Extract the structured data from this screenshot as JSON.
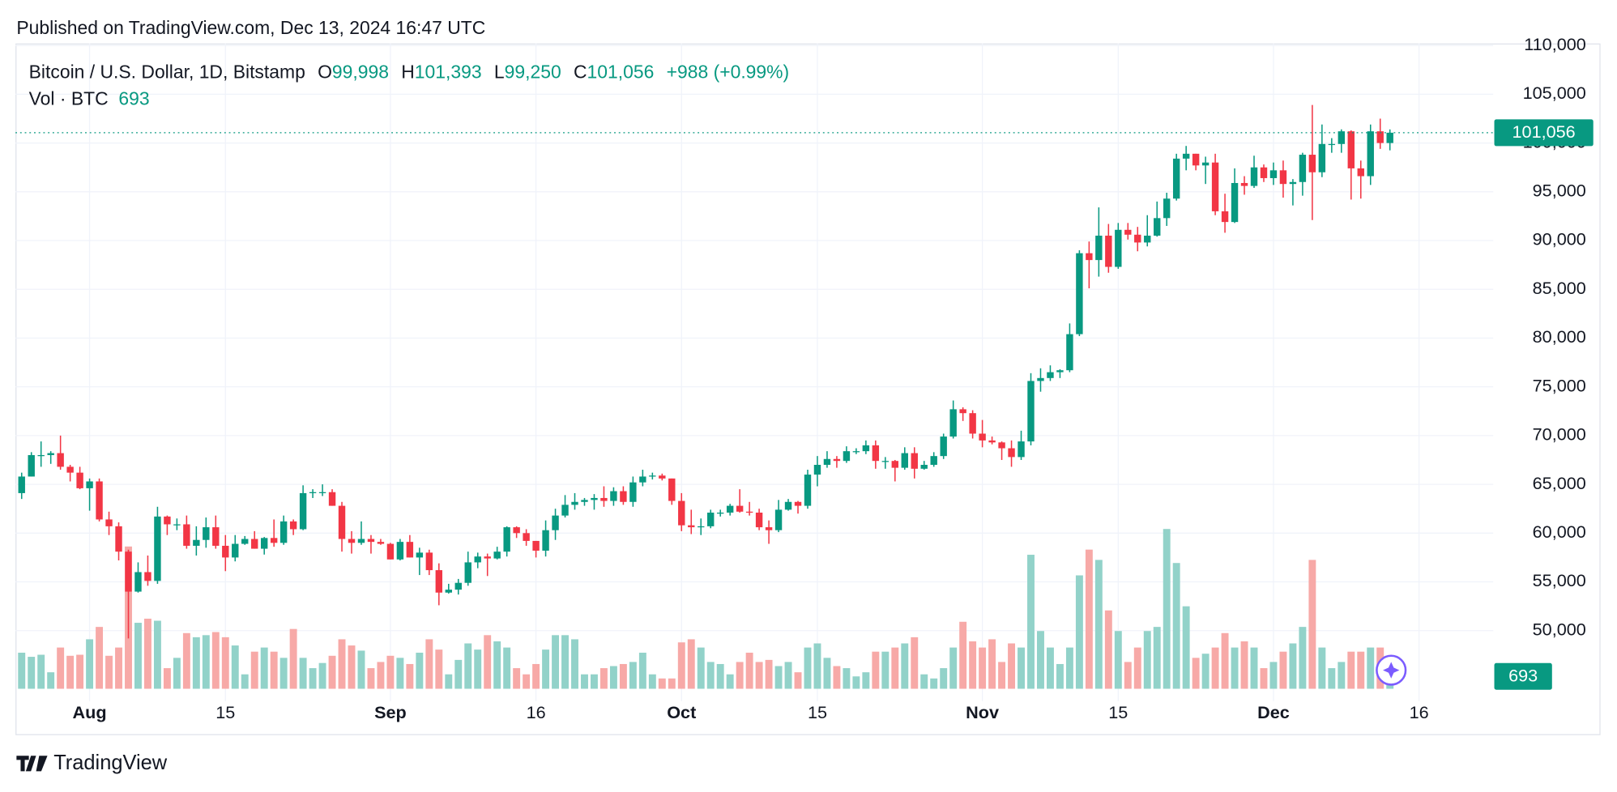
{
  "published": "Published on TradingView.com, Dec 13, 2024 16:47 UTC",
  "brand": "TradingView",
  "chart_data": {
    "type": "candlestick",
    "legend": {
      "symbol": "Bitcoin / U.S. Dollar, 1D, Bitstamp",
      "o": "O",
      "open": "99,998",
      "h": "H",
      "high": "101,393",
      "l": "L",
      "low": "99,250",
      "c": "C",
      "close": "101,056",
      "change": "+988 (+0.99%)",
      "vol": "Vol · BTC",
      "volume": "693"
    },
    "up_color": "#089981",
    "down_color": "#f23645",
    "vol_up_color": "#92d2c9",
    "vol_down_color": "#f7a9a7",
    "ylim": [
      42770,
      110210
    ],
    "vol_lim": [
      0,
      9600
    ],
    "grid": true,
    "yticks": [
      {
        "value": 50000,
        "label": "50,000"
      },
      {
        "value": 55000,
        "label": "55,000"
      },
      {
        "value": 60000,
        "label": "60,000"
      },
      {
        "value": 65000,
        "label": "65,000"
      },
      {
        "value": 70000,
        "label": "70,000"
      },
      {
        "value": 75000,
        "label": "75,000"
      },
      {
        "value": 80000,
        "label": "80,000"
      },
      {
        "value": 85000,
        "label": "85,000"
      },
      {
        "value": 90000,
        "label": "90,000"
      },
      {
        "value": 95000,
        "label": "95,000"
      },
      {
        "value": 100000,
        "label": "100,000"
      },
      {
        "value": 105000,
        "label": "105,000"
      },
      {
        "value": 110000,
        "label": "110,000"
      }
    ],
    "xticks": [
      {
        "value": "Aug 1",
        "label": "Aug"
      },
      {
        "value": "Aug 15",
        "label": "15"
      },
      {
        "value": "Sep 1",
        "label": "Sep"
      },
      {
        "value": "Sep 16",
        "label": "16"
      },
      {
        "value": "Oct 1",
        "label": "Oct"
      },
      {
        "value": "Oct 15",
        "label": "15"
      },
      {
        "value": "Nov 1",
        "label": "Nov"
      },
      {
        "value": "Nov 15",
        "label": "15"
      },
      {
        "value": "Dec 1",
        "label": "Dec"
      },
      {
        "value": "Dec 16",
        "label": "16"
      }
    ],
    "x": [
      "Jul 25",
      "Jul 26",
      "Jul 27",
      "Jul 28",
      "Jul 29",
      "Jul 30",
      "Jul 31",
      "Aug 1",
      "Aug 2",
      "Aug 3",
      "Aug 4",
      "Aug 5",
      "Aug 6",
      "Aug 7",
      "Aug 8",
      "Aug 9",
      "Aug 10",
      "Aug 11",
      "Aug 12",
      "Aug 13",
      "Aug 14",
      "Aug 15",
      "Aug 16",
      "Aug 17",
      "Aug 18",
      "Aug 19",
      "Aug 20",
      "Aug 21",
      "Aug 22",
      "Aug 23",
      "Aug 24",
      "Aug 25",
      "Aug 26",
      "Aug 27",
      "Aug 28",
      "Aug 29",
      "Aug 30",
      "Aug 31",
      "Sep 1",
      "Sep 2",
      "Sep 3",
      "Sep 4",
      "Sep 5",
      "Sep 6",
      "Sep 7",
      "Sep 8",
      "Sep 9",
      "Sep 10",
      "Sep 11",
      "Sep 12",
      "Sep 13",
      "Sep 14",
      "Sep 15",
      "Sep 16",
      "Sep 17",
      "Sep 18",
      "Sep 19",
      "Sep 20",
      "Sep 21",
      "Sep 22",
      "Sep 23",
      "Sep 24",
      "Sep 25",
      "Sep 26",
      "Sep 27",
      "Sep 28",
      "Sep 29",
      "Sep 30",
      "Oct 1",
      "Oct 2",
      "Oct 3",
      "Oct 4",
      "Oct 5",
      "Oct 6",
      "Oct 7",
      "Oct 8",
      "Oct 9",
      "Oct 10",
      "Oct 11",
      "Oct 12",
      "Oct 13",
      "Oct 14",
      "Oct 15",
      "Oct 16",
      "Oct 17",
      "Oct 18",
      "Oct 19",
      "Oct 20",
      "Oct 21",
      "Oct 22",
      "Oct 23",
      "Oct 24",
      "Oct 25",
      "Oct 26",
      "Oct 27",
      "Oct 28",
      "Oct 29",
      "Oct 30",
      "Oct 31",
      "Nov 1",
      "Nov 2",
      "Nov 3",
      "Nov 4",
      "Nov 5",
      "Nov 6",
      "Nov 7",
      "Nov 8",
      "Nov 9",
      "Nov 10",
      "Nov 11",
      "Nov 12",
      "Nov 13",
      "Nov 14",
      "Nov 15",
      "Nov 16",
      "Nov 17",
      "Nov 18",
      "Nov 19",
      "Nov 20",
      "Nov 21",
      "Nov 22",
      "Nov 23",
      "Nov 24",
      "Nov 25",
      "Nov 26",
      "Nov 27",
      "Nov 28",
      "Nov 29",
      "Nov 30",
      "Dec 1",
      "Dec 2",
      "Dec 3",
      "Dec 4",
      "Dec 5",
      "Dec 6",
      "Dec 7",
      "Dec 8",
      "Dec 9",
      "Dec 10",
      "Dec 11",
      "Dec 12",
      "Dec 13"
    ],
    "candles": [
      [
        64100,
        66200,
        63500,
        65800,
        1400
      ],
      [
        65800,
        68300,
        65800,
        68000,
        1240
      ],
      [
        68000,
        69400,
        66800,
        68000,
        1320
      ],
      [
        68000,
        68400,
        67100,
        68200,
        640
      ],
      [
        68200,
        70000,
        66500,
        66800,
        1600
      ],
      [
        66800,
        67000,
        65300,
        66200,
        1280
      ],
      [
        66200,
        66800,
        64500,
        64600,
        1320
      ],
      [
        64600,
        65600,
        62300,
        65300,
        1920
      ],
      [
        65300,
        65600,
        61200,
        61400,
        2400
      ],
      [
        61400,
        62200,
        59800,
        60700,
        1280
      ],
      [
        60700,
        61100,
        57200,
        58100,
        1600
      ],
      [
        58100,
        58300,
        49200,
        54000,
        5520
      ],
      [
        54000,
        57000,
        53900,
        56000,
        2560
      ],
      [
        56000,
        57700,
        54600,
        55100,
        2720
      ],
      [
        55100,
        62700,
        54800,
        61700,
        2640
      ],
      [
        61700,
        61800,
        59800,
        60900,
        800
      ],
      [
        60900,
        61500,
        60300,
        60900,
        1200
      ],
      [
        60900,
        61800,
        58400,
        58700,
        2160
      ],
      [
        58700,
        60700,
        57700,
        59300,
        2000
      ],
      [
        59300,
        61600,
        58500,
        60600,
        2080
      ],
      [
        60600,
        61800,
        58400,
        58700,
        2200
      ],
      [
        58700,
        59800,
        56100,
        57500,
        2000
      ],
      [
        57500,
        59800,
        57100,
        58900,
        1680
      ],
      [
        58900,
        59700,
        58800,
        59400,
        560
      ],
      [
        59400,
        60200,
        58400,
        58400,
        1440
      ],
      [
        58400,
        59600,
        57800,
        59500,
        1600
      ],
      [
        59500,
        61400,
        58600,
        59000,
        1440
      ],
      [
        59000,
        61800,
        58800,
        61200,
        1200
      ],
      [
        61200,
        61400,
        59800,
        60400,
        2320
      ],
      [
        60400,
        64900,
        60300,
        64100,
        1200
      ],
      [
        64100,
        64500,
        63600,
        64200,
        800
      ],
      [
        64200,
        65000,
        63800,
        64200,
        1000
      ],
      [
        64200,
        64500,
        62800,
        62800,
        1280
      ],
      [
        62800,
        63200,
        58100,
        59400,
        1920
      ],
      [
        59400,
        60200,
        57900,
        59000,
        1680
      ],
      [
        59000,
        61200,
        58800,
        59400,
        1480
      ],
      [
        59400,
        59800,
        57900,
        59100,
        800
      ],
      [
        59100,
        59400,
        58800,
        58900,
        1040
      ],
      [
        58900,
        59000,
        57300,
        57300,
        1280
      ],
      [
        57300,
        59400,
        57200,
        59100,
        1200
      ],
      [
        59100,
        59800,
        57500,
        57500,
        960
      ],
      [
        57500,
        58500,
        55700,
        58000,
        1400
      ],
      [
        58000,
        58300,
        55700,
        56200,
        1920
      ],
      [
        56200,
        56900,
        52600,
        53900,
        1520
      ],
      [
        53900,
        54800,
        53800,
        54200,
        560
      ],
      [
        54200,
        55300,
        53700,
        54900,
        1120
      ],
      [
        54900,
        58100,
        54600,
        57000,
        1760
      ],
      [
        57000,
        58000,
        56400,
        57600,
        1520
      ],
      [
        57600,
        57900,
        55600,
        57400,
        2080
      ],
      [
        57400,
        58600,
        57300,
        58100,
        1840
      ],
      [
        58100,
        60700,
        57600,
        60600,
        1600
      ],
      [
        60600,
        60700,
        59500,
        60000,
        800
      ],
      [
        60000,
        60400,
        58700,
        59200,
        560
      ],
      [
        59200,
        59200,
        57500,
        58200,
        960
      ],
      [
        58200,
        61300,
        57600,
        60300,
        1520
      ],
      [
        60300,
        62500,
        59300,
        61800,
        2080
      ],
      [
        61800,
        63900,
        61600,
        62900,
        2080
      ],
      [
        62900,
        64100,
        62400,
        63200,
        1920
      ],
      [
        63200,
        63600,
        62800,
        63400,
        560
      ],
      [
        63400,
        64000,
        62400,
        63600,
        560
      ],
      [
        63600,
        64800,
        62700,
        63300,
        800
      ],
      [
        63300,
        64700,
        62800,
        64300,
        880
      ],
      [
        64300,
        64800,
        62900,
        63200,
        960
      ],
      [
        63200,
        65800,
        62700,
        65200,
        1040
      ],
      [
        65200,
        66500,
        64800,
        65800,
        1400
      ],
      [
        65800,
        66200,
        65500,
        65900,
        560
      ],
      [
        65900,
        66100,
        65400,
        65600,
        400
      ],
      [
        65600,
        65600,
        62900,
        63300,
        400
      ],
      [
        63300,
        64100,
        60200,
        60800,
        1800
      ],
      [
        60800,
        62400,
        59900,
        60600,
        1920
      ],
      [
        60600,
        61500,
        59800,
        60700,
        1600
      ],
      [
        60700,
        62400,
        60500,
        62100,
        1040
      ],
      [
        62100,
        62400,
        61700,
        62100,
        960
      ],
      [
        62100,
        63000,
        61800,
        62800,
        560
      ],
      [
        62800,
        64500,
        62100,
        62200,
        1040
      ],
      [
        62200,
        63200,
        61800,
        62100,
        1400
      ],
      [
        62100,
        62500,
        60300,
        60600,
        1040
      ],
      [
        60600,
        61300,
        58900,
        60300,
        1120
      ],
      [
        60300,
        63400,
        60100,
        62400,
        880
      ],
      [
        62400,
        63500,
        62300,
        63200,
        1040
      ],
      [
        63200,
        63300,
        62000,
        62800,
        640
      ],
      [
        62800,
        66500,
        62500,
        66000,
        1600
      ],
      [
        66000,
        67900,
        64800,
        67000,
        1760
      ],
      [
        67000,
        68400,
        66700,
        67600,
        1200
      ],
      [
        67600,
        67900,
        66700,
        67400,
        880
      ],
      [
        67400,
        68900,
        67200,
        68400,
        800
      ],
      [
        68400,
        68700,
        68100,
        68400,
        480
      ],
      [
        68400,
        69500,
        68100,
        69000,
        640
      ],
      [
        69000,
        69500,
        66600,
        67400,
        1440
      ],
      [
        67400,
        67800,
        66600,
        67400,
        1440
      ],
      [
        67400,
        67500,
        65300,
        66700,
        1600
      ],
      [
        66700,
        68800,
        66500,
        68200,
        1760
      ],
      [
        68200,
        68800,
        65600,
        66600,
        2000
      ],
      [
        66600,
        67400,
        66500,
        67000,
        560
      ],
      [
        67000,
        68300,
        66800,
        67900,
        400
      ],
      [
        67900,
        70200,
        67600,
        69900,
        800
      ],
      [
        69900,
        73600,
        69700,
        72700,
        1600
      ],
      [
        72700,
        72900,
        71500,
        72300,
        2600
      ],
      [
        72300,
        72600,
        69700,
        70200,
        1840
      ],
      [
        70200,
        71600,
        68800,
        69500,
        1600
      ],
      [
        69500,
        69900,
        69100,
        69300,
        1920
      ],
      [
        69300,
        69400,
        67500,
        68700,
        1040
      ],
      [
        68700,
        69500,
        66800,
        67800,
        1760
      ],
      [
        67800,
        70500,
        67500,
        69400,
        1600
      ],
      [
        69400,
        76400,
        69000,
        75600,
        5200
      ],
      [
        75600,
        76900,
        74500,
        75900,
        2240
      ],
      [
        75900,
        77200,
        75600,
        76500,
        1600
      ],
      [
        76500,
        76800,
        75900,
        76700,
        960
      ],
      [
        76700,
        81500,
        76500,
        80400,
        1600
      ],
      [
        80400,
        89000,
        80200,
        88700,
        4400
      ],
      [
        88700,
        89900,
        85100,
        88000,
        5400
      ],
      [
        88000,
        93400,
        86300,
        90500,
        5000
      ],
      [
        90500,
        91700,
        86700,
        87300,
        3040
      ],
      [
        87300,
        91800,
        87100,
        91100,
        2240
      ],
      [
        91100,
        91800,
        90100,
        90600,
        1040
      ],
      [
        90600,
        91400,
        88900,
        89800,
        1600
      ],
      [
        89800,
        92600,
        89400,
        90500,
        2240
      ],
      [
        90500,
        94000,
        90400,
        92300,
        2400
      ],
      [
        92300,
        94900,
        91500,
        94300,
        6200
      ],
      [
        94300,
        98900,
        94100,
        98400,
        4880
      ],
      [
        98400,
        99700,
        97200,
        98900,
        3200
      ],
      [
        98900,
        98900,
        97200,
        97700,
        1200
      ],
      [
        97700,
        98600,
        95800,
        98000,
        1360
      ],
      [
        98000,
        98900,
        92600,
        93000,
        1600
      ],
      [
        93000,
        94800,
        90800,
        91900,
        2160
      ],
      [
        91900,
        97400,
        91800,
        95900,
        1600
      ],
      [
        95900,
        96600,
        94700,
        95600,
        1840
      ],
      [
        95600,
        98700,
        95400,
        97500,
        1600
      ],
      [
        97500,
        97800,
        96000,
        96400,
        800
      ],
      [
        96400,
        98000,
        95700,
        97200,
        1040
      ],
      [
        97200,
        98200,
        94400,
        95800,
        1440
      ],
      [
        95800,
        96300,
        93600,
        96000,
        1760
      ],
      [
        96000,
        99000,
        94600,
        98800,
        2400
      ],
      [
        98800,
        103900,
        92100,
        97000,
        5000
      ],
      [
        97000,
        101900,
        96500,
        99900,
        1600
      ],
      [
        99900,
        100500,
        99000,
        99900,
        800
      ],
      [
        99900,
        101400,
        99000,
        101200,
        1040
      ],
      [
        101200,
        101300,
        94200,
        97400,
        1440
      ],
      [
        97400,
        98200,
        94300,
        96600,
        1440
      ],
      [
        96600,
        101900,
        95700,
        101200,
        1600
      ],
      [
        101200,
        102500,
        99400,
        100000,
        1600
      ],
      [
        99998,
        101393,
        99250,
        101056,
        693
      ]
    ]
  }
}
